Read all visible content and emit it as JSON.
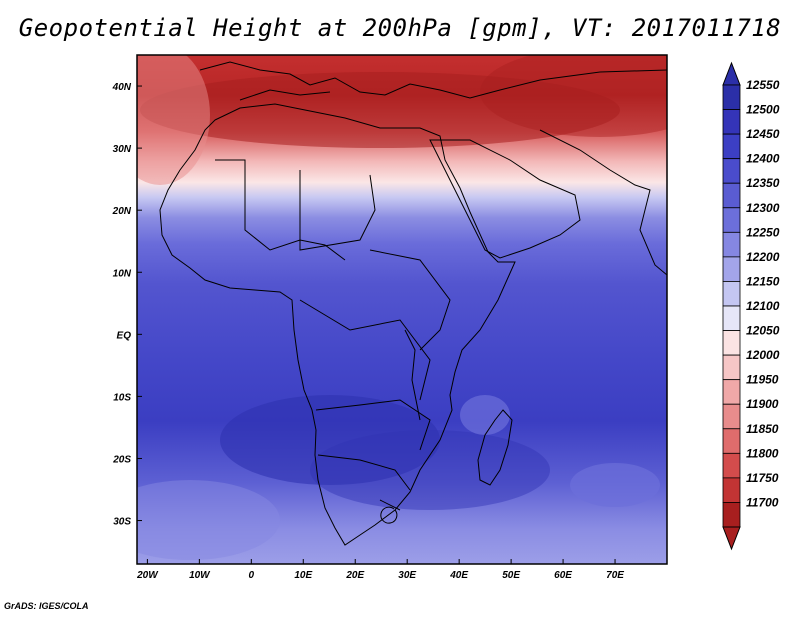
{
  "title": "Geopotential Height at 200hPa [gpm], VT: 2017011718",
  "credit": "GrADS: IGES/COLA",
  "map": {
    "lon_range": [
      -22,
      80
    ],
    "lat_range": [
      -37,
      45
    ],
    "lon_ticks": [
      "20W",
      "10W",
      "0",
      "10E",
      "20E",
      "30E",
      "40E",
      "50E",
      "60E",
      "70E"
    ],
    "lat_ticks": [
      "40N",
      "30N",
      "20N",
      "10N",
      "EQ",
      "10S",
      "20S",
      "30S"
    ]
  },
  "colorbar": {
    "levels": [
      "12550",
      "12500",
      "12450",
      "12400",
      "12350",
      "12300",
      "12250",
      "12200",
      "12150",
      "12100",
      "12050",
      "12000",
      "11950",
      "11900",
      "11850",
      "11800",
      "11750",
      "11700"
    ],
    "colors": [
      "#2b2fa8",
      "#3434b8",
      "#3c3fc4",
      "#4a4ccc",
      "#5a5cd2",
      "#6c6fda",
      "#8587e2",
      "#a3a5ea",
      "#c4c6f2",
      "#e6e6f8",
      "#fbe3e3",
      "#f6c6c6",
      "#f0a8a8",
      "#e88c8c",
      "#df6c6c",
      "#d34c4c",
      "#c23434",
      "#a81f1f"
    ]
  },
  "chart_data": {
    "type": "heatmap",
    "title": "Geopotential Height at 200hPa [gpm], VT: 2017011718",
    "units": "gpm",
    "xlim": [
      -22,
      80
    ],
    "ylim": [
      -37,
      45
    ],
    "contour_levels": [
      11700,
      11750,
      11800,
      11850,
      11900,
      11950,
      12000,
      12050,
      12100,
      12150,
      12200,
      12250,
      12300,
      12350,
      12400,
      12450,
      12500,
      12550
    ]
  }
}
